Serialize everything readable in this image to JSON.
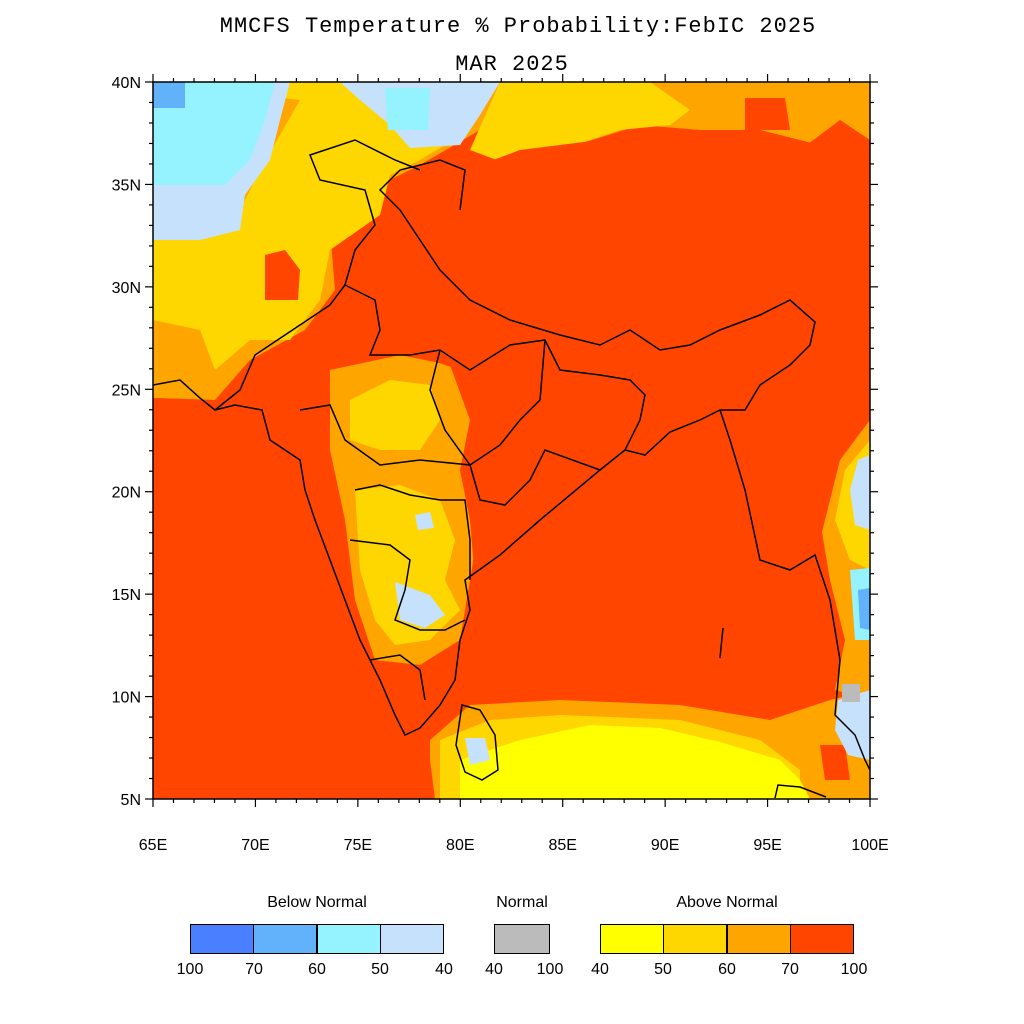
{
  "title": {
    "line1": "MMCFS Temperature % Probability:FebIC 2025",
    "line2": "MAR 2025"
  },
  "map": {
    "lat_range": [
      5,
      40
    ],
    "lon_range": [
      65,
      100
    ],
    "lat_ticks": [
      "5N",
      "10N",
      "15N",
      "20N",
      "25N",
      "30N",
      "35N",
      "40N"
    ],
    "lon_ticks": [
      "65E",
      "70E",
      "75E",
      "80E",
      "85E",
      "90E",
      "95E",
      "100E"
    ],
    "background_category": "above_70_100"
  },
  "colors": {
    "below_70_100": "#4a7fff",
    "below_60_70": "#62b1fb",
    "below_50_60": "#94f3ff",
    "below_40_50": "#c6e1fc",
    "normal": "#bbbbbb",
    "above_40_50": "#ffff00",
    "above_50_60": "#ffd700",
    "above_60_70": "#ffa500",
    "above_70_100": "#ff4500"
  },
  "legend": {
    "below": {
      "title": "Below Normal",
      "colors": [
        "#4a7fff",
        "#62b1fb",
        "#94f3ff",
        "#c6e1fc"
      ],
      "labels": [
        "100",
        "70",
        "60",
        "50",
        "40"
      ]
    },
    "normal": {
      "title": "Normal",
      "colors": [
        "#bbbbbb"
      ],
      "labels": [
        "40",
        "100"
      ]
    },
    "above": {
      "title": "Above Normal",
      "colors": [
        "#ffff00",
        "#ffd700",
        "#ffa500",
        "#ff4500"
      ],
      "labels": [
        "40",
        "50",
        "60",
        "70",
        "100"
      ]
    }
  }
}
